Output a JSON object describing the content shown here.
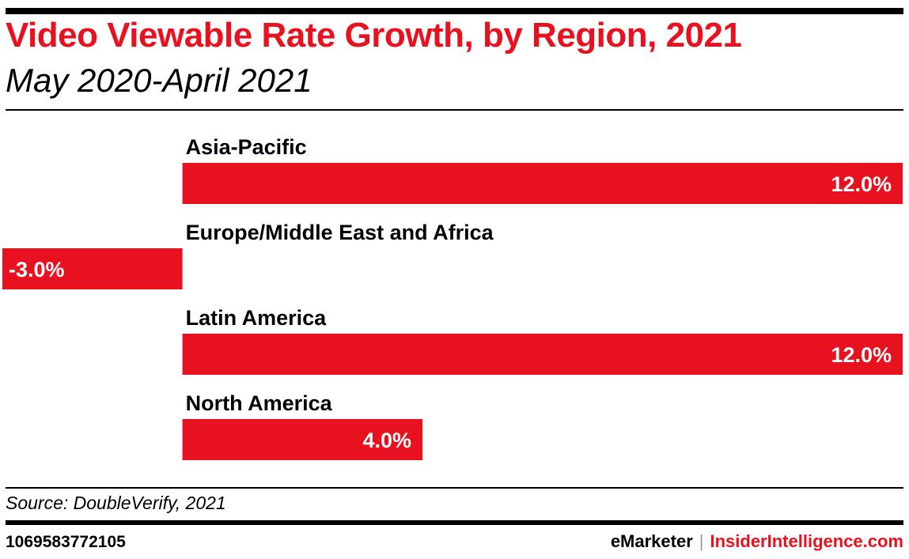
{
  "header": {
    "title": "Video Viewable Rate Growth, by Region, 2021",
    "subtitle": "May 2020-April 2021"
  },
  "chart_data": {
    "type": "bar",
    "orientation": "horizontal",
    "title": "Video Viewable Rate Growth, by Region, 2021",
    "subtitle": "May 2020-April 2021",
    "categories": [
      "Asia-Pacific",
      "Europe/Middle East and Africa",
      "Latin America",
      "North America"
    ],
    "values": [
      12.0,
      -3.0,
      12.0,
      4.0
    ],
    "value_labels": [
      "12.0%",
      "-3.0%",
      "12.0%",
      "4.0%"
    ],
    "unit": "%",
    "xlim": [
      -3.0,
      12.0
    ],
    "bar_color": "#e8111f",
    "grid": false
  },
  "footer": {
    "source": "Source: DoubleVerify, 2021",
    "chart_id": "1069583772105",
    "brand_emarketer": "eMarketer",
    "brand_separator": "|",
    "brand_insider": "InsiderIntelligence.com"
  }
}
